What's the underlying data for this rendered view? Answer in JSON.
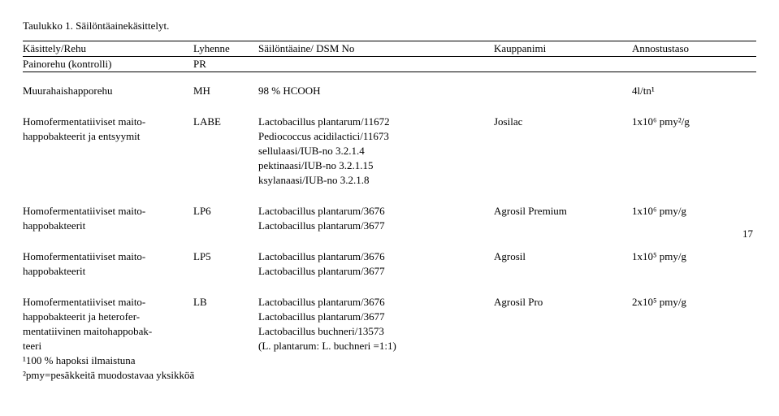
{
  "caption": "Taulukko 1. Säilöntäainekäsittelyt.",
  "header": {
    "c0": "Käsittely/Rehu",
    "c1": "Lyhenne",
    "c2": "Säilöntäaine/ DSM No",
    "c3": "Kauppanimi",
    "c4": "Annostustaso"
  },
  "rows": {
    "pr": {
      "c0": "Painorehu (kontrolli)",
      "c1": "PR"
    },
    "mh": {
      "c0": "Muurahaishapporehu",
      "c1": "MH",
      "c2": "98 % HCOOH",
      "c4": "4l/tn¹"
    },
    "labe": {
      "c0a": "Homofermentatiiviset maito-",
      "c0b": "happobakteerit ja entsyymit",
      "c1": "LABE",
      "c2a": "Lactobacillus plantarum/11672",
      "c2b": "Pediococcus acidilactici/11673",
      "c2c": "sellulaasi/IUB-no 3.2.1.4",
      "c2d": "pektinaasi/IUB-no 3.2.1.15",
      "c2e": "ksylanaasi/IUB-no 3.2.1.8",
      "c3": "Josilac",
      "c4": "1x10⁶ pmy²/g"
    },
    "lp6": {
      "c0a": "Homofermentatiiviset maito-",
      "c0b": "happobakteerit",
      "c1": "LP6",
      "c2a": "Lactobacillus plantarum/3676",
      "c2b": "Lactobacillus plantarum/3677",
      "c3": "Agrosil Premium",
      "c4": "1x10⁶ pmy/g"
    },
    "lp5": {
      "c0a": "Homofermentatiiviset maito-",
      "c0b": "happobakteerit",
      "c1": "LP5",
      "c2a": "Lactobacillus plantarum/3676",
      "c2b": "Lactobacillus plantarum/3677",
      "c3": "Agrosil",
      "c4": "1x10⁵ pmy/g"
    },
    "lb": {
      "c0a": "Homofermentatiiviset maito-",
      "c0b": "happobakteerit ja heterofer-",
      "c0c": "mentatiivinen maitohappobak-",
      "c0d": "teeri",
      "c1": "LB",
      "c2a": "Lactobacillus plantarum/3676",
      "c2b": "Lactobacillus plantarum/3677",
      "c2c": "Lactobacillus buchneri/13573",
      "c2d": "(L. plantarum: L. buchneri =1:1)",
      "c3": "Agrosil Pro",
      "c4": "2x10⁵ pmy/g"
    }
  },
  "footnotes": {
    "f1": "¹100 % hapoksi ilmaistuna",
    "f2": "²pmy=pesäkkeitä muodostavaa yksikköä"
  },
  "sidenum": "17"
}
